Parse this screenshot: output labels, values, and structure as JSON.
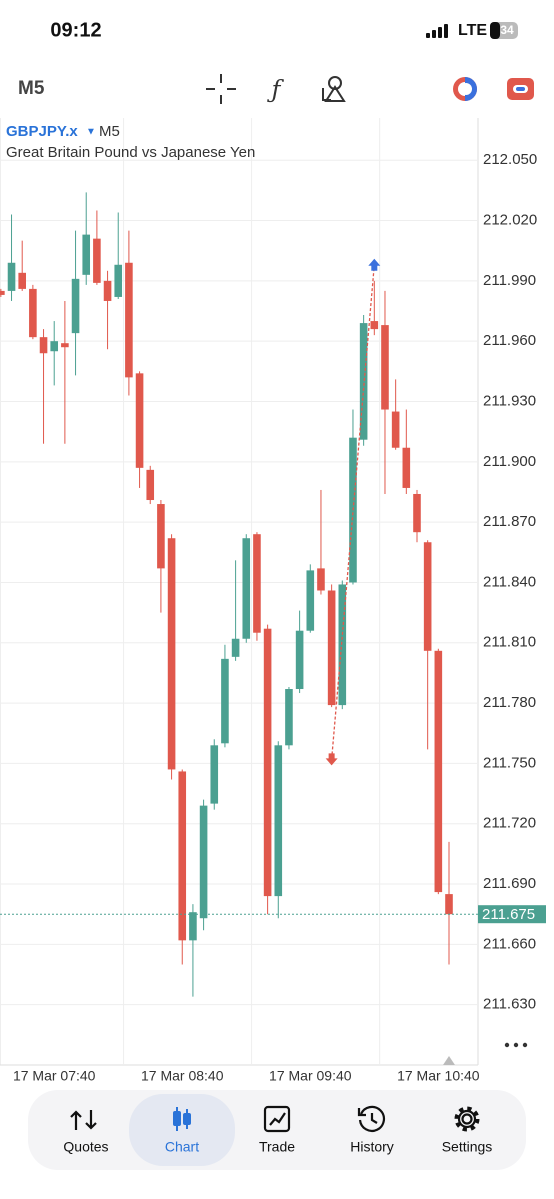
{
  "status_bar": {
    "time": "09:12",
    "network": "LTE",
    "battery": "34"
  },
  "chart_data": {
    "type": "candlestick",
    "title": "GBPJPY.x",
    "timeframe": "M5",
    "subtitle": "Great Britain Pound vs Japanese Yen",
    "categories": [
      null,
      null,
      null,
      null,
      null,
      "17 Mar 07:40",
      null,
      null,
      null,
      null,
      null,
      null,
      null,
      null,
      null,
      null,
      null,
      "17 Mar 08:40",
      null,
      null,
      null,
      null,
      null,
      null,
      null,
      null,
      null,
      null,
      null,
      "17 Mar 09:40",
      null,
      null,
      null,
      null,
      null,
      null,
      null,
      null,
      null,
      null,
      null,
      "17 Mar 10:40",
      null
    ],
    "open": [
      211.985,
      211.985,
      211.994,
      211.986,
      211.962,
      211.955,
      211.959,
      211.964,
      211.993,
      212.011,
      211.99,
      211.982,
      211.999,
      211.944,
      211.896,
      211.879,
      211.862,
      211.746,
      211.662,
      211.673,
      211.73,
      211.76,
      211.803,
      211.812,
      211.864,
      211.817,
      211.684,
      211.759,
      211.787,
      211.816,
      211.847,
      211.836,
      211.779,
      211.84,
      211.911,
      211.97,
      211.968,
      211.925,
      211.907,
      211.884,
      211.86,
      211.806,
      211.685
    ],
    "high": [
      211.986,
      212.023,
      212.01,
      211.988,
      211.966,
      211.97,
      211.98,
      212.015,
      212.034,
      212.025,
      211.995,
      212.024,
      212.015,
      211.945,
      211.898,
      211.881,
      211.864,
      211.747,
      211.68,
      211.732,
      211.762,
      211.809,
      211.851,
      211.864,
      211.865,
      211.819,
      211.761,
      211.788,
      211.826,
      211.849,
      211.886,
      211.839,
      211.841,
      211.926,
      211.973,
      211.99,
      211.985,
      211.941,
      211.926,
      211.886,
      211.861,
      211.807,
      211.711
    ],
    "low": [
      211.982,
      211.98,
      211.985,
      211.961,
      211.909,
      211.938,
      211.909,
      211.943,
      211.988,
      211.988,
      211.956,
      211.981,
      211.933,
      211.887,
      211.879,
      211.825,
      211.742,
      211.65,
      211.634,
      211.667,
      211.727,
      211.758,
      211.801,
      211.81,
      211.811,
      211.675,
      211.673,
      211.757,
      211.785,
      211.815,
      211.834,
      211.778,
      211.777,
      211.839,
      211.908,
      211.963,
      211.884,
      211.906,
      211.884,
      211.86,
      211.757,
      211.685,
      211.65
    ],
    "close": [
      211.983,
      211.999,
      211.986,
      211.962,
      211.954,
      211.96,
      211.957,
      211.991,
      212.013,
      211.989,
      211.98,
      211.998,
      211.942,
      211.897,
      211.881,
      211.847,
      211.747,
      211.662,
      211.676,
      211.729,
      211.759,
      211.802,
      211.812,
      211.862,
      211.815,
      211.684,
      211.759,
      211.787,
      211.816,
      211.846,
      211.836,
      211.779,
      211.839,
      211.912,
      211.969,
      211.966,
      211.926,
      211.907,
      211.887,
      211.865,
      211.806,
      211.686,
      211.675
    ],
    "up_color": "#4ba091",
    "down_color": "#e0584c",
    "ylim": [
      211.6,
      212.071
    ],
    "yticks": [
      {
        "value": 212.05,
        "label": "212.050"
      },
      {
        "value": 212.02,
        "label": "212.020"
      },
      {
        "value": 211.99,
        "label": "211.990"
      },
      {
        "value": 211.96,
        "label": "211.960"
      },
      {
        "value": 211.93,
        "label": "211.930"
      },
      {
        "value": 211.9,
        "label": "211.900"
      },
      {
        "value": 211.87,
        "label": "211.870"
      },
      {
        "value": 211.84,
        "label": "211.840"
      },
      {
        "value": 211.81,
        "label": "211.810"
      },
      {
        "value": 211.78,
        "label": "211.780"
      },
      {
        "value": 211.75,
        "label": "211.750"
      },
      {
        "value": 211.72,
        "label": "211.720"
      },
      {
        "value": 211.69,
        "label": "211.690"
      },
      {
        "value": 211.66,
        "label": "211.660"
      },
      {
        "value": 211.63,
        "label": "211.630"
      }
    ],
    "grid": true,
    "current_price": 211.675,
    "markers": [
      {
        "index": 31,
        "value": 211.752,
        "color": "#e0584c"
      },
      {
        "index": 35,
        "value": 211.998,
        "color": "#3a70dd"
      }
    ]
  },
  "nav": {
    "items": [
      "Quotes",
      "Chart",
      "Trade",
      "History",
      "Settings"
    ],
    "selected": 1
  }
}
